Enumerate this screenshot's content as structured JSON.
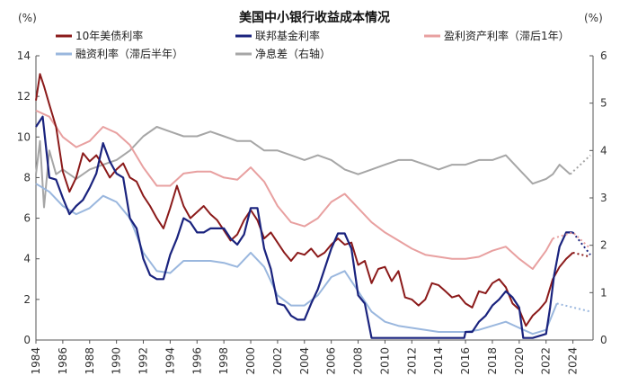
{
  "chart_data": {
    "type": "line",
    "title": "美国中小银行收益成本情况",
    "left_unit": "(%)",
    "right_unit": "(%)",
    "left_ylim": [
      0,
      14
    ],
    "right_ylim": [
      0,
      6
    ],
    "left_yticks": [
      0,
      2,
      4,
      6,
      8,
      10,
      12,
      14
    ],
    "right_yticks": [
      0,
      1,
      2,
      3,
      4,
      5,
      6
    ],
    "xlim": [
      1984,
      2025.5
    ],
    "xticks": [
      1984,
      1986,
      1988,
      1990,
      1992,
      1994,
      1996,
      1998,
      2000,
      2002,
      2004,
      2006,
      2008,
      2010,
      2012,
      2014,
      2016,
      2018,
      2020,
      2022,
      2024
    ],
    "legend": "top",
    "series": [
      {
        "name": "10年美债利率",
        "color": "#8b1a1a",
        "axis": "left",
        "x": [
          1984,
          1984.3,
          1984.6,
          1985,
          1985.5,
          1986,
          1986.5,
          1987,
          1987.5,
          1988,
          1988.5,
          1989,
          1989.5,
          1990,
          1990.5,
          1991,
          1991.5,
          1992,
          1992.5,
          1993,
          1993.5,
          1994,
          1994.5,
          1995,
          1995.5,
          1996,
          1996.5,
          1997,
          1997.5,
          1998,
          1998.5,
          1999,
          1999.5,
          2000,
          2000.5,
          2001,
          2001.5,
          2002,
          2002.5,
          2003,
          2003.5,
          2004,
          2004.5,
          2005,
          2005.5,
          2006,
          2006.5,
          2007,
          2007.5,
          2008,
          2008.5,
          2009,
          2009.5,
          2010,
          2010.5,
          2011,
          2011.5,
          2012,
          2012.5,
          2013,
          2013.5,
          2014,
          2014.5,
          2015,
          2015.5,
          2016,
          2016.5,
          2017,
          2017.5,
          2018,
          2018.5,
          2019,
          2019.5,
          2020,
          2020.5,
          2021,
          2021.5,
          2022,
          2022.5,
          2023,
          2023.5,
          2024
        ],
        "y": [
          11.8,
          13.1,
          12.5,
          11.6,
          10.5,
          8.3,
          7.3,
          8.0,
          9.2,
          8.8,
          9.1,
          8.6,
          8.0,
          8.4,
          8.7,
          8.0,
          7.8,
          7.1,
          6.6,
          6.0,
          5.5,
          6.5,
          7.6,
          6.6,
          6.0,
          6.3,
          6.6,
          6.2,
          5.9,
          5.4,
          4.9,
          5.2,
          5.9,
          6.4,
          5.9,
          5.0,
          5.3,
          4.8,
          4.3,
          3.9,
          4.3,
          4.2,
          4.5,
          4.1,
          4.3,
          4.7,
          5.0,
          4.7,
          4.8,
          3.7,
          3.9,
          2.8,
          3.5,
          3.6,
          2.9,
          3.4,
          2.1,
          2.0,
          1.7,
          2.0,
          2.8,
          2.7,
          2.4,
          2.1,
          2.2,
          1.8,
          1.6,
          2.4,
          2.3,
          2.8,
          3.0,
          2.6,
          1.8,
          1.5,
          0.7,
          1.2,
          1.5,
          1.9,
          3.0,
          3.6,
          4.0,
          4.3
        ]
      },
      {
        "name": "联邦基金利率",
        "color": "#1a237e",
        "axis": "left",
        "x": [
          1984,
          1984.5,
          1985,
          1985.5,
          1986,
          1986.5,
          1987,
          1987.5,
          1988,
          1988.5,
          1989,
          1989.5,
          1990,
          1990.5,
          1991,
          1991.5,
          1992,
          1992.5,
          1993,
          1993.5,
          1994,
          1994.5,
          1995,
          1995.5,
          1996,
          1996.5,
          1997,
          1997.5,
          1998,
          1998.5,
          1999,
          1999.5,
          2000,
          2000.5,
          2001,
          2001.5,
          2002,
          2002.5,
          2003,
          2003.5,
          2004,
          2004.5,
          2005,
          2005.5,
          2006,
          2006.5,
          2007,
          2007.5,
          2008,
          2008.5,
          2009,
          2010,
          2012,
          2014,
          2015.9,
          2016,
          2016.5,
          2017,
          2017.5,
          2018,
          2018.5,
          2019,
          2019.5,
          2020,
          2020.3,
          2021,
          2022,
          2022.3,
          2022.6,
          2023,
          2023.5,
          2024
        ],
        "y": [
          10.5,
          11.0,
          8.0,
          7.9,
          7.0,
          6.2,
          6.6,
          6.9,
          7.5,
          8.2,
          9.7,
          8.8,
          8.2,
          8.0,
          6.0,
          5.5,
          4.0,
          3.2,
          3.0,
          3.0,
          4.2,
          5.0,
          6.0,
          5.8,
          5.3,
          5.3,
          5.5,
          5.5,
          5.5,
          5.0,
          4.7,
          5.2,
          6.5,
          6.5,
          4.5,
          3.5,
          1.8,
          1.7,
          1.2,
          1.0,
          1.0,
          1.8,
          2.5,
          3.5,
          4.5,
          5.25,
          5.25,
          4.5,
          2.2,
          1.8,
          0.1,
          0.1,
          0.1,
          0.1,
          0.1,
          0.4,
          0.4,
          0.9,
          1.2,
          1.7,
          2.0,
          2.4,
          2.1,
          1.6,
          0.1,
          0.1,
          0.3,
          1.6,
          3.2,
          4.6,
          5.3,
          5.3
        ]
      },
      {
        "name": "盈利资产利率（滞后1年）",
        "color": "#e8a0a0",
        "axis": "left",
        "x": [
          1984,
          1985,
          1986,
          1987,
          1988,
          1989,
          1990,
          1991,
          1992,
          1993,
          1994,
          1995,
          1996,
          1997,
          1998,
          1999,
          2000,
          2001,
          2002,
          2003,
          2004,
          2005,
          2006,
          2007,
          2008,
          2009,
          2010,
          2011,
          2012,
          2013,
          2014,
          2015,
          2016,
          2017,
          2018,
          2019,
          2020,
          2021,
          2022,
          2022.5
        ],
        "y": [
          11.3,
          11.0,
          10.0,
          9.5,
          9.8,
          10.5,
          10.2,
          9.6,
          8.5,
          7.6,
          7.6,
          8.2,
          8.3,
          8.3,
          8.0,
          7.9,
          8.5,
          7.8,
          6.6,
          5.8,
          5.6,
          6.0,
          6.8,
          7.2,
          6.5,
          5.8,
          5.3,
          4.9,
          4.5,
          4.2,
          4.1,
          4.0,
          4.0,
          4.1,
          4.4,
          4.6,
          4.0,
          3.5,
          4.4,
          5.0
        ]
      },
      {
        "name": "融资利率（滞后半年）",
        "color": "#9ab7de",
        "axis": "left",
        "x": [
          1984,
          1985,
          1986,
          1987,
          1988,
          1989,
          1990,
          1991,
          1992,
          1993,
          1994,
          1995,
          1996,
          1997,
          1998,
          1999,
          2000,
          2001,
          2002,
          2003,
          2004,
          2005,
          2006,
          2007,
          2008,
          2009,
          2010,
          2011,
          2012,
          2013,
          2014,
          2015,
          2016,
          2017,
          2018,
          2019,
          2020,
          2021,
          2022,
          2022.8
        ],
        "y": [
          7.7,
          7.3,
          6.6,
          6.2,
          6.5,
          7.1,
          6.8,
          6.0,
          4.3,
          3.4,
          3.3,
          3.9,
          3.9,
          3.9,
          3.8,
          3.6,
          4.3,
          3.6,
          2.2,
          1.7,
          1.7,
          2.2,
          3.1,
          3.4,
          2.4,
          1.4,
          0.9,
          0.7,
          0.6,
          0.5,
          0.4,
          0.4,
          0.4,
          0.5,
          0.7,
          0.9,
          0.6,
          0.3,
          0.5,
          1.8
        ]
      },
      {
        "name": "净息差（右轴）",
        "color": "#a6a6a6",
        "axis": "right",
        "x": [
          1984,
          1984.3,
          1984.6,
          1985,
          1985.5,
          1986,
          1987,
          1988,
          1989,
          1990,
          1991,
          1992,
          1993,
          1994,
          1995,
          1996,
          1997,
          1998,
          1999,
          2000,
          2001,
          2002,
          2003,
          2004,
          2005,
          2006,
          2007,
          2008,
          2009,
          2010,
          2011,
          2012,
          2013,
          2014,
          2015,
          2016,
          2017,
          2018,
          2019,
          2020,
          2021,
          2022,
          2022.5,
          2023,
          2023.8
        ],
        "y": [
          3.5,
          4.2,
          2.8,
          4.0,
          3.5,
          3.6,
          3.4,
          3.6,
          3.7,
          3.8,
          4.0,
          4.3,
          4.5,
          4.4,
          4.3,
          4.3,
          4.4,
          4.3,
          4.2,
          4.2,
          4.0,
          4.0,
          3.9,
          3.8,
          3.9,
          3.8,
          3.6,
          3.5,
          3.6,
          3.7,
          3.8,
          3.8,
          3.7,
          3.6,
          3.7,
          3.7,
          3.8,
          3.8,
          3.9,
          3.6,
          3.3,
          3.4,
          3.5,
          3.7,
          3.5
        ]
      }
    ],
    "forecast_dots": [
      {
        "series": 0,
        "x": [
          2024,
          2025.3
        ],
        "y": [
          4.3,
          4.1
        ]
      },
      {
        "series": 1,
        "x": [
          2024,
          2025.3
        ],
        "y": [
          5.3,
          4.2
        ]
      },
      {
        "series": 2,
        "x": [
          2022.5,
          2024,
          2025.3
        ],
        "y": [
          5.0,
          5.3,
          4.5
        ]
      },
      {
        "series": 3,
        "x": [
          2022.8,
          2025.3
        ],
        "y": [
          1.8,
          1.4
        ]
      },
      {
        "series": 4,
        "x": [
          2023.8,
          2025.3
        ],
        "y": [
          3.5,
          3.9
        ]
      }
    ]
  }
}
